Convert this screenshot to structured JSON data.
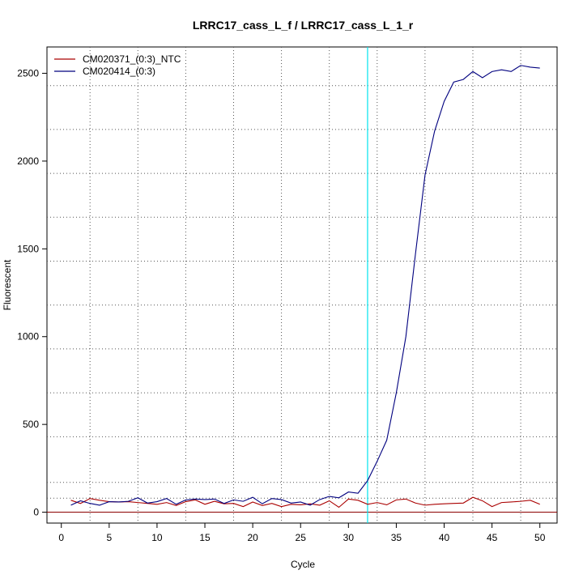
{
  "chart_data": {
    "type": "line",
    "title": "LRRC17_cass_L_f / LRRC17_cass_L_1_r",
    "xlabel": "Cycle",
    "ylabel": "Fluorescent",
    "xlim": [
      -1.5,
      51.8
    ],
    "ylim": [
      -62,
      2650
    ],
    "x_ticks": [
      0,
      5,
      10,
      15,
      20,
      25,
      30,
      35,
      40,
      45,
      50
    ],
    "y_ticks": [
      0,
      500,
      1000,
      1500,
      2000,
      2500
    ],
    "x_grid": [
      3,
      8,
      13,
      18,
      23,
      28,
      33,
      38,
      43,
      48
    ],
    "y_grid": [
      0,
      80,
      170,
      430,
      680,
      930,
      1180,
      1430,
      1680,
      1930,
      2180,
      2430
    ],
    "grid": true,
    "legend_position": "top-left",
    "threshold_x": 32,
    "threshold_color": "#00e5ee",
    "baseline_y": 0,
    "baseline_color": "#8b0000",
    "x": [
      1,
      2,
      3,
      4,
      5,
      6,
      7,
      8,
      9,
      10,
      11,
      12,
      13,
      14,
      15,
      16,
      17,
      18,
      19,
      20,
      21,
      22,
      23,
      24,
      25,
      26,
      27,
      28,
      29,
      30,
      31,
      32,
      33,
      34,
      35,
      36,
      37,
      38,
      39,
      40,
      41,
      42,
      43,
      44,
      45,
      46,
      47,
      48,
      49,
      50
    ],
    "series": [
      {
        "name": "CM020371_(0:3)_NTC",
        "color": "#aa0000",
        "values": [
          68,
          50,
          78,
          68,
          60,
          58,
          60,
          55,
          50,
          45,
          55,
          38,
          60,
          70,
          45,
          62,
          48,
          50,
          32,
          58,
          38,
          50,
          32,
          45,
          42,
          48,
          40,
          65,
          28,
          75,
          68,
          45,
          55,
          42,
          70,
          75,
          52,
          40,
          45,
          48,
          50,
          52,
          85,
          65,
          32,
          55,
          58,
          62,
          68,
          45
        ]
      },
      {
        "name": "CM020414_(0:3)",
        "color": "#00007f",
        "values": [
          40,
          65,
          50,
          40,
          60,
          58,
          62,
          82,
          52,
          60,
          78,
          45,
          70,
          75,
          72,
          75,
          50,
          70,
          62,
          85,
          48,
          78,
          72,
          52,
          58,
          40,
          72,
          90,
          82,
          115,
          108,
          180,
          290,
          410,
          680,
          1000,
          1470,
          1920,
          2170,
          2340,
          2450,
          2465,
          2510,
          2475,
          2510,
          2520,
          2510,
          2545,
          2535,
          2530
        ]
      }
    ]
  }
}
